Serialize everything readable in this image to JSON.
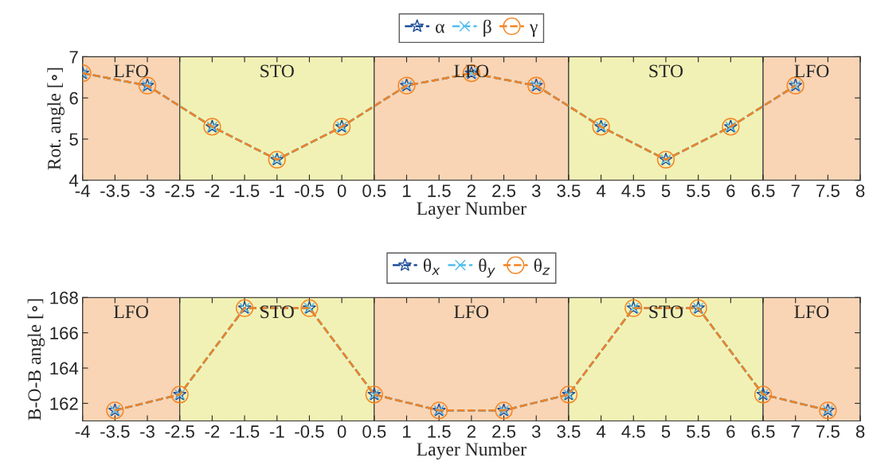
{
  "chart_data": [
    {
      "type": "line",
      "xlabel": "Layer Number",
      "ylabel": "Rot. angle [∘]",
      "legend": "top",
      "line_style": "dashed",
      "x": [
        -4,
        -3,
        -2,
        -1,
        0,
        1,
        2,
        3,
        4,
        5,
        6,
        7
      ],
      "series": [
        {
          "name": "α",
          "color": "#1f4e9a",
          "marker": "star",
          "values": [
            6.6,
            6.3,
            5.3,
            4.5,
            5.3,
            6.3,
            6.6,
            6.3,
            5.3,
            4.5,
            5.3,
            6.3
          ]
        },
        {
          "name": "β",
          "color": "#4dbeee",
          "marker": "cross",
          "values": [
            6.6,
            6.3,
            5.3,
            4.5,
            5.3,
            6.3,
            6.6,
            6.3,
            5.3,
            4.5,
            5.3,
            6.3
          ]
        },
        {
          "name": "γ",
          "color": "#f5821f",
          "marker": "circle",
          "values": [
            6.6,
            6.3,
            5.3,
            4.5,
            5.3,
            6.3,
            6.6,
            6.3,
            5.3,
            4.5,
            5.3,
            6.3
          ]
        }
      ],
      "xlim": [
        -4,
        8
      ],
      "xticks": [
        -4,
        -3.5,
        -3,
        -2.5,
        -2,
        -1.5,
        -1,
        -0.5,
        0,
        0.5,
        1,
        1.5,
        2,
        2.5,
        3,
        3.5,
        4,
        4.5,
        5,
        5.5,
        6,
        6.5,
        7,
        7.5,
        8
      ],
      "ylim": [
        4,
        7
      ],
      "yticks": [
        4,
        5,
        6,
        7
      ],
      "bands": [
        {
          "axis": "x",
          "from": -4,
          "to": -2.5,
          "label": "LFO",
          "color": "#f9d5b5"
        },
        {
          "axis": "x",
          "from": -2.5,
          "to": 0.5,
          "label": "STO",
          "color": "#f1f1b5"
        },
        {
          "axis": "x",
          "from": 0.5,
          "to": 3.5,
          "label": "LFO",
          "color": "#f9d5b5"
        },
        {
          "axis": "x",
          "from": 3.5,
          "to": 6.5,
          "label": "STO",
          "color": "#f1f1b5"
        },
        {
          "axis": "x",
          "from": 6.5,
          "to": 8,
          "label": "LFO",
          "color": "#f9d5b5"
        }
      ]
    },
    {
      "type": "line",
      "xlabel": "Layer Number",
      "ylabel": "B-O-B angle [∘]",
      "legend": "top",
      "line_style": "dashed",
      "x": [
        -3.5,
        -2.5,
        -1.5,
        -0.5,
        0.5,
        1.5,
        2.5,
        3.5,
        4.5,
        5.5,
        6.5,
        7.5
      ],
      "series": [
        {
          "name": "θ$_{x}$",
          "color": "#1f4e9a",
          "marker": "star",
          "values": [
            161.6,
            162.5,
            167.4,
            167.4,
            162.5,
            161.6,
            161.6,
            162.5,
            167.4,
            167.4,
            162.5,
            161.6
          ]
        },
        {
          "name": "θ$_{y}$",
          "color": "#4dbeee",
          "marker": "cross",
          "values": [
            161.6,
            162.5,
            167.4,
            167.4,
            162.5,
            161.6,
            161.6,
            162.5,
            167.4,
            167.4,
            162.5,
            161.6
          ]
        },
        {
          "name": "θ$_{z}$",
          "color": "#f5821f",
          "marker": "circle",
          "values": [
            161.6,
            162.5,
            167.4,
            167.4,
            162.5,
            161.6,
            161.6,
            162.5,
            167.4,
            167.4,
            162.5,
            161.6
          ]
        }
      ],
      "xlim": [
        -4,
        8
      ],
      "xticks": [
        -4,
        -3.5,
        -3,
        -2.5,
        -2,
        -1.5,
        -1,
        -0.5,
        0,
        0.5,
        1,
        1.5,
        2,
        2.5,
        3,
        3.5,
        4,
        4.5,
        5,
        5.5,
        6,
        6.5,
        7,
        7.5,
        8
      ],
      "ylim": [
        161,
        168
      ],
      "yticks": [
        162,
        164,
        166,
        168
      ],
      "bands": [
        {
          "axis": "x",
          "from": -4,
          "to": -2.5,
          "label": "LFO",
          "color": "#f9d5b5"
        },
        {
          "axis": "x",
          "from": -2.5,
          "to": 0.5,
          "label": "STO",
          "color": "#f1f1b5"
        },
        {
          "axis": "x",
          "from": 0.5,
          "to": 3.5,
          "label": "LFO",
          "color": "#f9d5b5"
        },
        {
          "axis": "x",
          "from": 3.5,
          "to": 6.5,
          "label": "STO",
          "color": "#f1f1b5"
        },
        {
          "axis": "x",
          "from": 6.5,
          "to": 8,
          "label": "LFO",
          "color": "#f9d5b5"
        }
      ]
    }
  ]
}
